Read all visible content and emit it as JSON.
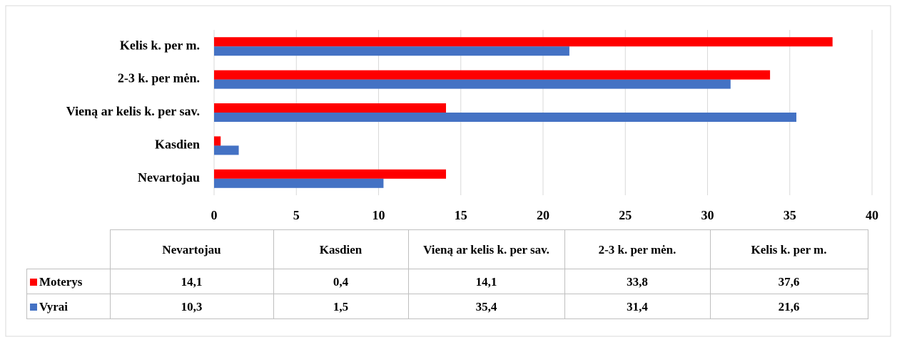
{
  "chart_data": {
    "type": "bar",
    "orientation": "horizontal",
    "categories": [
      "Nevartojau",
      "Kasdien",
      "Vieną ar kelis k. per sav.",
      "2-3 k. per mėn.",
      "Kelis k. per m."
    ],
    "series": [
      {
        "name": "Moterys",
        "color": "#ff0000",
        "values": [
          14.1,
          0.4,
          14.1,
          33.8,
          37.6
        ],
        "value_labels": [
          "14,1",
          "0,4",
          "14,1",
          "33,8",
          "37,6"
        ]
      },
      {
        "name": "Vyrai",
        "color": "#4472c4",
        "values": [
          10.3,
          1.5,
          35.4,
          31.4,
          21.6
        ],
        "value_labels": [
          "10,3",
          "1,5",
          "35,4",
          "31,4",
          "21,6"
        ]
      }
    ],
    "xlim": [
      0,
      40
    ],
    "xticks": [
      0,
      5,
      10,
      15,
      20,
      25,
      30,
      35,
      40
    ],
    "grid": true,
    "data_table": true
  }
}
